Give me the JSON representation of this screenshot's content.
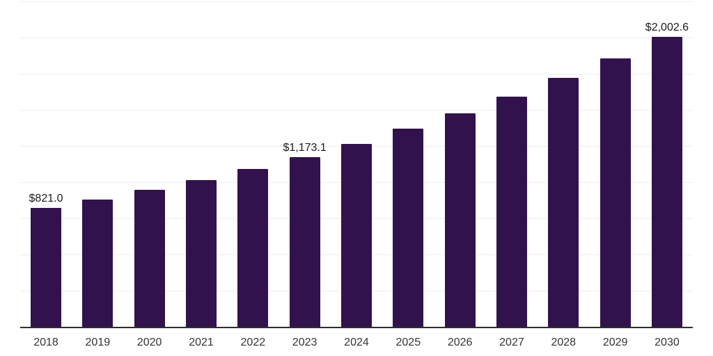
{
  "chart": {
    "background_color": "#ffffff",
    "bar_color": "#32124c",
    "gridline_color": "#ededed",
    "axis_color": "#2e2e2e",
    "value_label_color": "#1a1a1a",
    "tick_label_color": "#333333"
  },
  "chart_data": {
    "type": "bar",
    "title": "",
    "subtitle": "",
    "xlabel": "",
    "ylabel": "",
    "legend": "none",
    "grid": "horizontal",
    "y_axis_tick_labels_visible": false,
    "ylim": [
      0,
      2250
    ],
    "gridline_step": 250,
    "gridlines": [
      250,
      500,
      750,
      1000,
      1250,
      1500,
      1750,
      2000,
      2250
    ],
    "categories": [
      "2018",
      "2019",
      "2020",
      "2021",
      "2022",
      "2023",
      "2024",
      "2025",
      "2026",
      "2027",
      "2028",
      "2029",
      "2030"
    ],
    "values": [
      821.0,
      881,
      948,
      1016,
      1092,
      1173.1,
      1266,
      1368,
      1474,
      1593,
      1720,
      1858,
      2002.6
    ],
    "data_labels": [
      "$821.0",
      null,
      null,
      null,
      null,
      "$1,173.1",
      null,
      null,
      null,
      null,
      null,
      null,
      "$2,002.6"
    ],
    "labeled_values_note": "only 2018, 2023 and 2030 bars show data labels; other values estimated from pixel heights"
  }
}
